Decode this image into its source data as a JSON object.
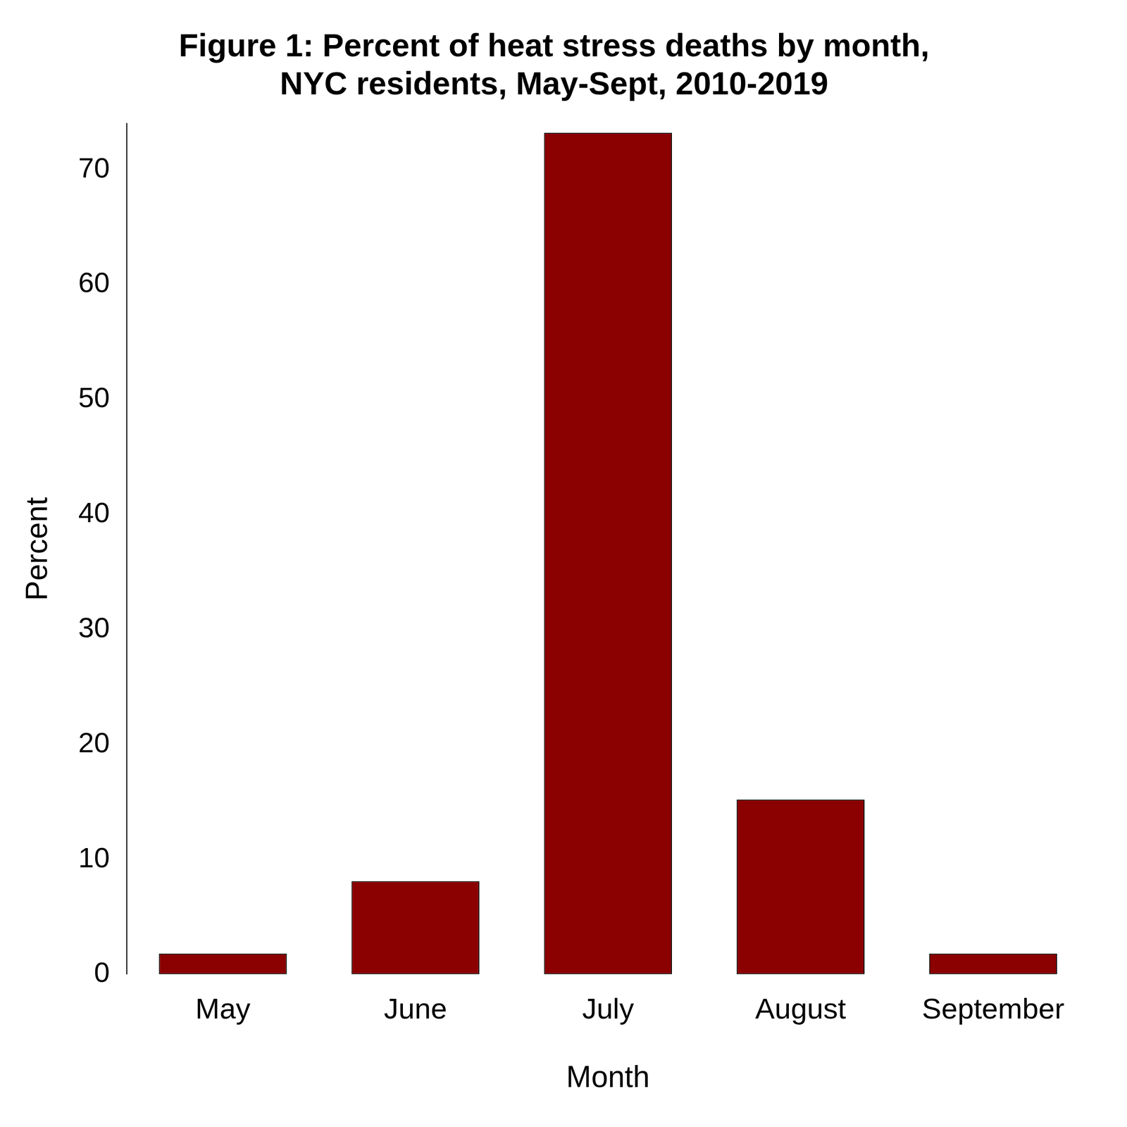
{
  "chart_data": {
    "type": "bar",
    "title": "Figure 1: Percent of heat stress deaths by month,\nNYC residents, May-Sept, 2010-2019",
    "x_label": "Month",
    "y_label": "Percent",
    "categories": [
      "May",
      "June",
      "July",
      "August",
      "September"
    ],
    "values": [
      1.8,
      8.1,
      73.2,
      15.2,
      1.8
    ],
    "color": "#8b0000",
    "ylim": [
      0,
      74
    ],
    "yticks": [
      0,
      10,
      20,
      30,
      40,
      50,
      60,
      70
    ],
    "grid": false
  }
}
